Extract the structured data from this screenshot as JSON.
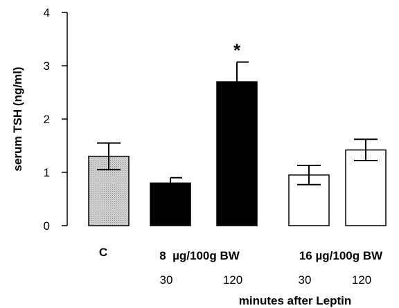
{
  "chart_data": {
    "type": "bar",
    "ylabel": "serum TSH (ng/ml)",
    "xlabel": "minutes after Leptin",
    "ylim": [
      0,
      4
    ],
    "yticks": [
      0,
      1,
      2,
      3,
      4
    ],
    "grid": false,
    "bars": [
      {
        "category": "C",
        "value": 1.3,
        "error": 0.25,
        "fill": "pattern-stipple",
        "significance": ""
      },
      {
        "category": "30",
        "value": 0.8,
        "error": 0.1,
        "fill": "#000000",
        "significance": ""
      },
      {
        "category": "120",
        "value": 2.7,
        "error": 0.37,
        "fill": "#000000",
        "significance": "*"
      },
      {
        "category": "30",
        "value": 0.95,
        "error": 0.18,
        "fill": "#ffffff",
        "significance": ""
      },
      {
        "category": "120",
        "value": 1.42,
        "error": 0.2,
        "fill": "#ffffff",
        "significance": ""
      }
    ],
    "dose_groups": [
      {
        "label": "8  µg/100g BW",
        "bars": [
          1,
          2
        ]
      },
      {
        "label": "16 µg/100g BW",
        "bars": [
          3,
          4
        ]
      }
    ]
  }
}
